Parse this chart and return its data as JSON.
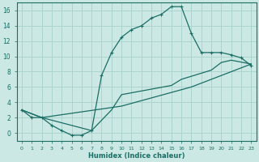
{
  "xlabel": "Humidex (Indice chaleur)",
  "bg_color": "#cce8e4",
  "line_color": "#1a6e64",
  "grid_color": "#aad4ce",
  "curve1_x": [
    0,
    1,
    2,
    3,
    4,
    5,
    6,
    7,
    8,
    9,
    10,
    11,
    12,
    13,
    14,
    15,
    16,
    17,
    18,
    19,
    20,
    21,
    22,
    23
  ],
  "curve1_y": [
    3.0,
    2.0,
    2.0,
    1.0,
    0.3,
    -0.3,
    -0.3,
    0.3,
    7.5,
    10.5,
    12.5,
    13.5,
    14.0,
    15.0,
    15.5,
    16.5,
    16.5,
    13.0,
    10.5,
    10.5,
    10.5,
    10.2,
    9.8,
    8.8
  ],
  "curve2_x": [
    0,
    2,
    7,
    9,
    10,
    15,
    16,
    19,
    20,
    21,
    23
  ],
  "curve2_y": [
    3.0,
    2.0,
    0.3,
    3.0,
    5.0,
    6.2,
    7.0,
    8.2,
    9.2,
    9.5,
    9.0
  ],
  "curve3_x": [
    0,
    2,
    10,
    17,
    19,
    23
  ],
  "curve3_y": [
    3.0,
    2.0,
    3.5,
    6.0,
    7.0,
    9.0
  ],
  "xlim": [
    -0.5,
    23.5
  ],
  "ylim": [
    -1,
    17
  ],
  "yticks": [
    0,
    2,
    4,
    6,
    8,
    10,
    12,
    14,
    16
  ],
  "xticks": [
    0,
    1,
    2,
    3,
    4,
    5,
    6,
    7,
    8,
    9,
    10,
    11,
    12,
    13,
    14,
    15,
    16,
    17,
    18,
    19,
    20,
    21,
    22,
    23
  ]
}
